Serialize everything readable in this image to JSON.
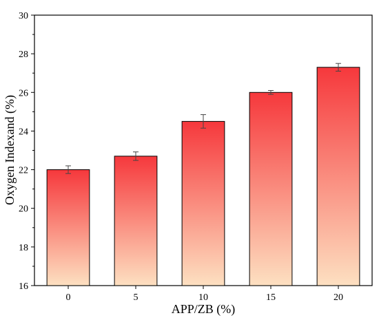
{
  "chart_data": {
    "type": "bar",
    "categories": [
      "0",
      "5",
      "10",
      "15",
      "20"
    ],
    "values": [
      22.0,
      22.7,
      24.5,
      26.0,
      27.3
    ],
    "errors": [
      0.2,
      0.22,
      0.35,
      0.1,
      0.2
    ],
    "xlabel": "APP/ZB (%)",
    "ylabel": "Oxygen Indexand (%)",
    "ylim": [
      16,
      30
    ],
    "yticks": [
      "16",
      "18",
      "20",
      "22",
      "24",
      "26",
      "28",
      "30"
    ],
    "grid": false,
    "bar_gradient": {
      "top": "#f6383c",
      "bottom": "#fde0c1"
    }
  }
}
